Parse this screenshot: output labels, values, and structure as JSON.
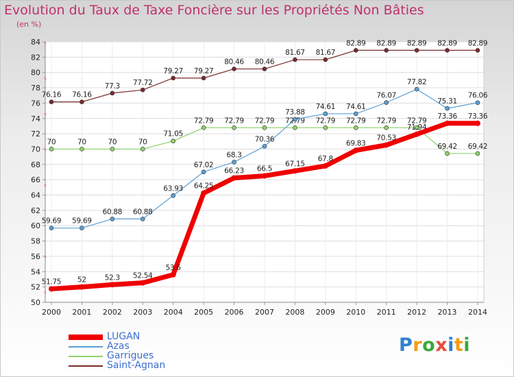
{
  "title": "Evolution du Taux de Taxe Foncière sur les Propriétés Non Bâties",
  "unit": "(en %)",
  "logo": {
    "letters": [
      "P",
      "r",
      "o",
      "x",
      "i",
      "t",
      "i"
    ],
    "colors": [
      "#2f7fd0",
      "#f39c12",
      "#3aa83a",
      "#e74c3c",
      "#2f7fd0",
      "#f39c12",
      "#3aa83a"
    ]
  },
  "chart_data": {
    "type": "line",
    "x": [
      "2000",
      "2001",
      "2002",
      "2003",
      "2004",
      "2005",
      "2006",
      "2007",
      "2008",
      "2009",
      "2010",
      "2011",
      "2012",
      "2013",
      "2014"
    ],
    "ylim": [
      50,
      84
    ],
    "yticks": [
      50,
      52,
      54,
      56,
      58,
      60,
      62,
      64,
      66,
      68,
      70,
      72,
      74,
      76,
      78,
      80,
      82,
      84
    ],
    "grid": true,
    "legend": "bottom-left",
    "series": [
      {
        "name": "Saint-Agnan",
        "color": "#7a2b2b",
        "width": 1.2,
        "values": [
          76.16,
          76.16,
          77.3,
          77.72,
          79.27,
          79.27,
          80.46,
          80.46,
          81.67,
          81.67,
          82.89,
          82.89,
          82.89,
          82.89,
          82.89
        ],
        "labels": [
          "76.16",
          "76.16",
          "77.3",
          "77.72",
          "79.27",
          "79.27",
          "80.46",
          "80.46",
          "81.67",
          "81.67",
          "82.89",
          "82.89",
          "82.89",
          "82.89",
          "82.89"
        ]
      },
      {
        "name": "Garrigues",
        "color": "#8fd16a",
        "width": 1.2,
        "values": [
          70,
          70,
          70,
          70,
          71.05,
          72.79,
          72.79,
          72.79,
          72.79,
          72.79,
          72.79,
          72.79,
          72.79,
          69.42,
          69.42
        ],
        "labels": [
          "70",
          "70",
          "70",
          "70",
          "71.05",
          "72.79",
          "72.79",
          "72.79",
          "72.79",
          "72.79",
          "72.79",
          "72.79",
          "72.79",
          "69.42",
          "69.42"
        ]
      },
      {
        "name": "Azas",
        "color": "#5a9fd4",
        "width": 1.2,
        "values": [
          59.69,
          59.69,
          60.88,
          60.88,
          63.93,
          67.02,
          68.3,
          70.36,
          73.88,
          74.61,
          74.61,
          76.07,
          77.82,
          75.31,
          76.06
        ],
        "labels": [
          "59.69",
          "59.69",
          "60.88",
          "60.88",
          "63.93",
          "67.02",
          "68.3",
          "70.36",
          "73.88",
          "74.61",
          "74.61",
          "76.07",
          "77.82",
          "75.31",
          "76.06"
        ]
      },
      {
        "name": "LUGAN",
        "color": "#ee0000",
        "width": 7,
        "values": [
          51.75,
          52,
          52.3,
          52.54,
          53.6,
          64.25,
          66.23,
          66.5,
          67.15,
          67.8,
          69.83,
          70.53,
          71.94,
          73.36,
          73.36
        ],
        "labels": [
          "51.75",
          "52",
          "52.3",
          "52.54",
          "53.6",
          "64.25",
          "66.23",
          "66.5",
          "67.15",
          "67.8",
          "69.83",
          "70.53",
          "71.94",
          "73.36",
          "73.36"
        ]
      }
    ],
    "legend_order": [
      "LUGAN",
      "Azas",
      "Garrigues",
      "Saint-Agnan"
    ]
  }
}
